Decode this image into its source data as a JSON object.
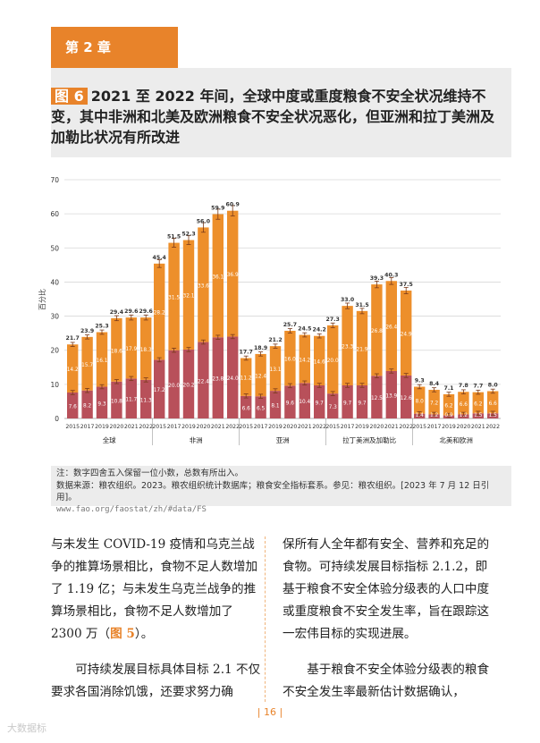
{
  "chapter": "第 2 章",
  "figure": {
    "label": "图 6",
    "title": "2021 至 2022 年间，全球中度或重度粮食不安全状况维持不变，其中非洲和北美及欧洲粮食不安全状况恶化，但亚洲和拉丁美洲及加勒比状况有所改进"
  },
  "chart_data": {
    "type": "bar",
    "stacked": true,
    "ylabel": "百分比",
    "ylim": [
      0,
      70
    ],
    "yticks": [
      "0",
      "10",
      "20",
      "30",
      "40",
      "50",
      "60",
      "70"
    ],
    "grid": true,
    "colors": {
      "moderate": "#ed8f2b",
      "severe": "#b8505a"
    },
    "groups": [
      {
        "name": "全球",
        "years": [
          "2015",
          "2017",
          "2019",
          "2020",
          "2021",
          "2022"
        ],
        "total": [
          21.7,
          23.9,
          25.3,
          29.4,
          29.6,
          29.6
        ],
        "severe": [
          7.6,
          8.2,
          9.3,
          10.8,
          11.7,
          11.3
        ],
        "moderate": [
          14.2,
          15.7,
          16.1,
          18.6,
          17.9,
          18.3
        ]
      },
      {
        "name": "非洲",
        "years": [
          "2015",
          "2017",
          "2019",
          "2020",
          "2021",
          "2022"
        ],
        "total": [
          45.4,
          51.5,
          52.3,
          56.0,
          59.9,
          60.9
        ],
        "severe": [
          17.2,
          20.0,
          20.2,
          22.4,
          23.8,
          24.0
        ],
        "moderate": [
          28.2,
          31.5,
          32.1,
          33.6,
          36.1,
          36.9
        ]
      },
      {
        "name": "亚洲",
        "years": [
          "2015",
          "2017",
          "2019",
          "2020",
          "2021",
          "2022"
        ],
        "total": [
          17.7,
          18.9,
          21.2,
          25.7,
          24.5,
          24.2
        ],
        "severe": [
          6.6,
          6.5,
          8.1,
          9.6,
          10.4,
          9.7
        ],
        "moderate": [
          11.2,
          12.4,
          13.1,
          16.0,
          14.2,
          14.6
        ]
      },
      {
        "name": "拉丁美洲及加勒比",
        "years": [
          "2015",
          "2017",
          "2019",
          "2020",
          "2021",
          "2022"
        ],
        "total": [
          27.3,
          33.0,
          31.5,
          39.3,
          40.3,
          37.5
        ],
        "severe": [
          7.3,
          9.7,
          9.7,
          12.5,
          13.9,
          12.6
        ],
        "moderate": [
          20.0,
          23.3,
          21.9,
          26.8,
          26.4,
          24.9
        ]
      },
      {
        "name": "北美和欧洲",
        "years": [
          "2015",
          "2017",
          "2019",
          "2020",
          "2021",
          "2022"
        ],
        "total": [
          9.3,
          8.4,
          7.1,
          7.8,
          7.7,
          8.0
        ],
        "severe": [
          1.4,
          1.2,
          0.9,
          1.2,
          1.5,
          1.5
        ],
        "moderate": [
          8.0,
          7.2,
          6.2,
          6.6,
          6.2,
          6.6
        ]
      }
    ]
  },
  "notes": {
    "line1": "注：数字四舍五入保留一位小数，总数有所出入。",
    "line2": "数据来源：粮农组织。2023。粮农组织统计数据库；粮食安全指标套系。参见：粮农组织。[2023 年 7 月 12 日引用]。",
    "url": "www.fao.org/faostat/zh/#data/FS"
  },
  "body": {
    "left_p1_a": "与未发生 COVID-19 疫情和乌克兰战争的推算场景相比，食物不足人数增加了 1.19 亿；与未发生乌克兰战争的推算场景相比，食物不足人数增加了 2300 万（",
    "left_p1_ref": "图 5",
    "left_p1_b": "）。",
    "left_p2": "可持续发展目标具体目标 2.1 不仅要求各国消除饥饿，还要求努力确",
    "right_p1": "保所有人全年都有安全、营养和充足的食物。可持续发展目标指标 2.1.2，即基于粮食不安全体验分级表的人口中度或重度粮食不安全发生率，旨在跟踪这一宏伟目标的实现进展。",
    "right_p2": "基于粮食不安全体验分级表的粮食不安全发生率最新估计数据确认，"
  },
  "page_number": "| 16 |",
  "watermark": "大数据标"
}
